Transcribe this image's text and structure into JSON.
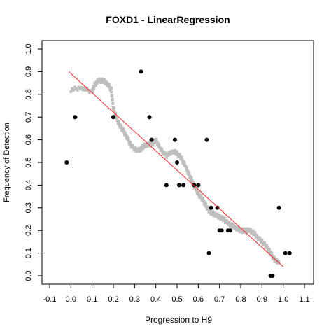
{
  "chart_data": {
    "type": "scatter",
    "title": "FOXD1 - LinearRegression",
    "xlabel": "Progression to H9",
    "ylabel": "Frequency of Detection",
    "xlim": [
      -0.1,
      1.1
    ],
    "ylim": [
      0.0,
      1.0
    ],
    "x_ticks": [
      "-0.1",
      "0.0",
      "0.1",
      "0.2",
      "0.3",
      "0.4",
      "0.5",
      "0.6",
      "0.7",
      "0.8",
      "0.9",
      "1.0",
      "1.1"
    ],
    "y_ticks": [
      "0.0",
      "0.1",
      "0.2",
      "0.3",
      "0.4",
      "0.5",
      "0.6",
      "0.7",
      "0.8",
      "0.9",
      "1.0"
    ],
    "grid": false,
    "legend": "none",
    "colors": {
      "observed": "#000000",
      "smoothed": "#bebebe",
      "regression": "#ff2020"
    },
    "series": [
      {
        "kind": "observed_points",
        "x": [
          -0.02,
          0.02,
          0.2,
          0.33,
          0.37,
          0.38,
          0.45,
          0.49,
          0.5,
          0.51,
          0.53,
          0.58,
          0.6,
          0.64,
          0.65,
          0.66,
          0.69,
          0.7,
          0.71,
          0.74,
          0.75,
          0.94,
          0.95,
          0.98,
          1.01,
          1.03
        ],
        "y": [
          0.5,
          0.7,
          0.7,
          0.9,
          0.7,
          0.6,
          0.4,
          0.6,
          0.5,
          0.4,
          0.4,
          0.4,
          0.4,
          0.6,
          0.1,
          0.3,
          0.3,
          0.2,
          0.2,
          0.2,
          0.2,
          0.0,
          0.0,
          0.3,
          0.1,
          0.1
        ]
      },
      {
        "kind": "smoothed_curve",
        "x": [
          0.0,
          0.05,
          0.1,
          0.11,
          0.13,
          0.15,
          0.17,
          0.19,
          0.2,
          0.22,
          0.24,
          0.26,
          0.28,
          0.3,
          0.32,
          0.34,
          0.36,
          0.38,
          0.4,
          0.42,
          0.45,
          0.48,
          0.5,
          0.52,
          0.54,
          0.56,
          0.58,
          0.6,
          0.62,
          0.64,
          0.66,
          0.68,
          0.7,
          0.72,
          0.74,
          0.76,
          0.78,
          0.8,
          0.82,
          0.84,
          0.86,
          0.88,
          0.9,
          0.92,
          0.94,
          0.96,
          0.98
        ],
        "y": [
          0.82,
          0.83,
          0.81,
          0.84,
          0.86,
          0.86,
          0.85,
          0.82,
          0.74,
          0.68,
          0.65,
          0.62,
          0.58,
          0.56,
          0.55,
          0.57,
          0.58,
          0.58,
          0.6,
          0.56,
          0.53,
          0.55,
          0.54,
          0.52,
          0.48,
          0.44,
          0.4,
          0.36,
          0.34,
          0.3,
          0.28,
          0.27,
          0.26,
          0.25,
          0.23,
          0.22,
          0.21,
          0.2,
          0.2,
          0.2,
          0.19,
          0.17,
          0.15,
          0.13,
          0.1,
          0.07,
          0.06
        ]
      },
      {
        "kind": "regression_line",
        "x": [
          -0.01,
          1.0
        ],
        "y": [
          0.9,
          0.04
        ]
      }
    ]
  }
}
